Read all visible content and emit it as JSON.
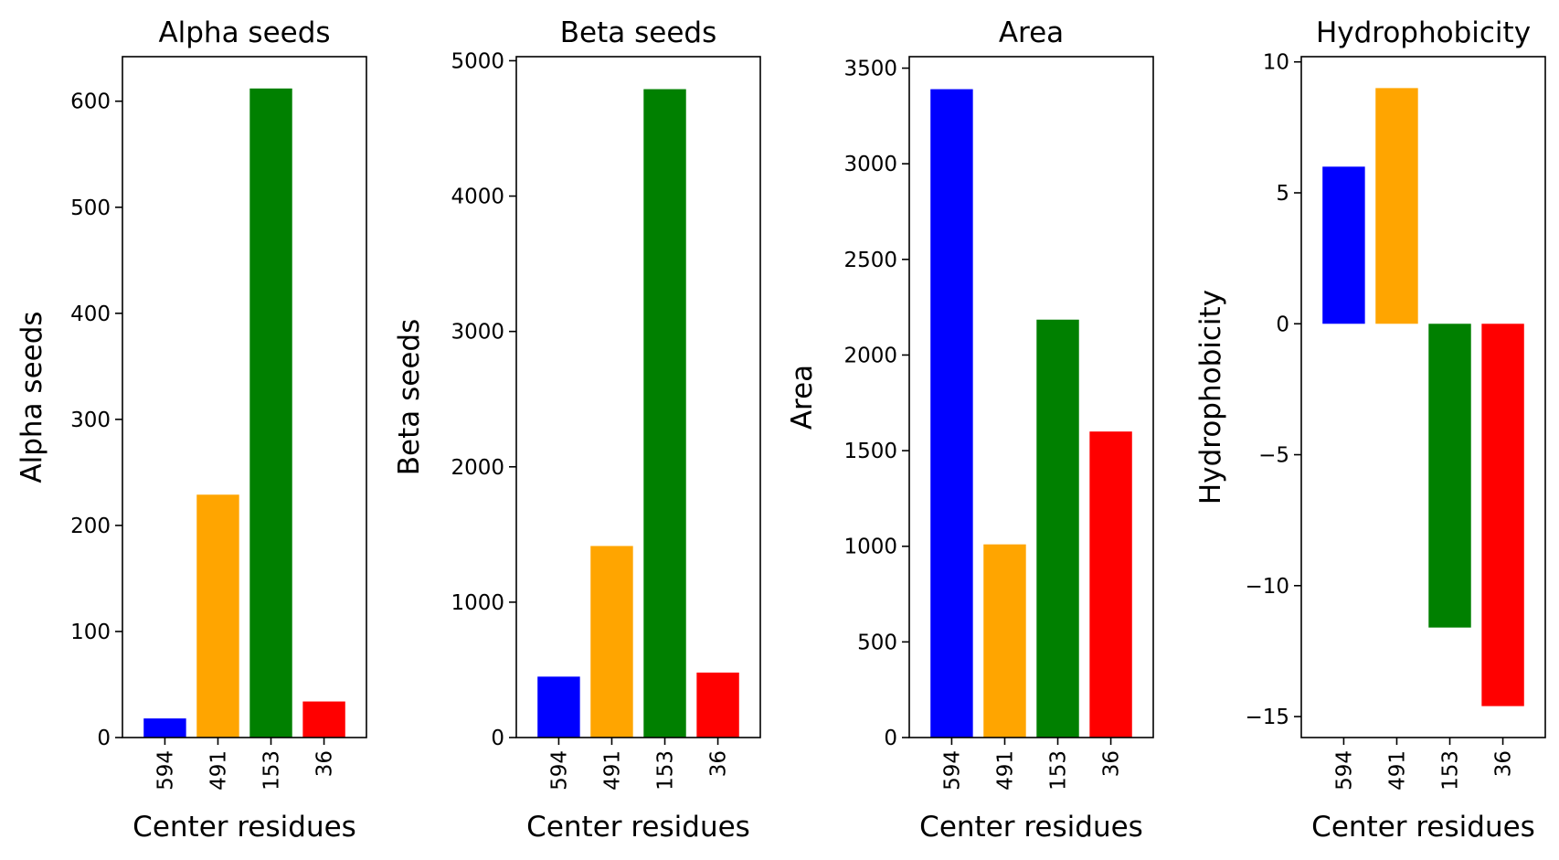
{
  "chart_data": [
    {
      "type": "bar",
      "title": "Alpha seeds",
      "xlabel": "Center residues",
      "ylabel": "Alpha seeds",
      "categories": [
        "594",
        "491",
        "153",
        "36"
      ],
      "values": [
        18,
        229,
        612,
        34
      ],
      "colors": [
        "#0000ff",
        "#ffa500",
        "#008000",
        "#ff0000"
      ],
      "ylim": [
        0,
        642
      ],
      "yticks": [
        0,
        100,
        200,
        300,
        400,
        500,
        600
      ],
      "grid": false
    },
    {
      "type": "bar",
      "title": "Beta seeds",
      "xlabel": "Center residues",
      "ylabel": "Beta seeds",
      "categories": [
        "594",
        "491",
        "153",
        "36"
      ],
      "values": [
        450,
        1415,
        4790,
        480
      ],
      "colors": [
        "#0000ff",
        "#ffa500",
        "#008000",
        "#ff0000"
      ],
      "ylim": [
        0,
        5030
      ],
      "yticks": [
        0,
        1000,
        2000,
        3000,
        4000,
        5000
      ],
      "grid": false
    },
    {
      "type": "bar",
      "title": "Area",
      "xlabel": "Center residues",
      "ylabel": "Area",
      "categories": [
        "594",
        "491",
        "153",
        "36"
      ],
      "values": [
        3390,
        1010,
        2185,
        1600
      ],
      "colors": [
        "#0000ff",
        "#ffa500",
        "#008000",
        "#ff0000"
      ],
      "ylim": [
        0,
        3560
      ],
      "yticks": [
        0,
        500,
        1000,
        1500,
        2000,
        2500,
        3000,
        3500
      ],
      "grid": false
    },
    {
      "type": "bar",
      "title": "Hydrophobicity",
      "xlabel": "Center residues",
      "ylabel": "Hydrophobicity",
      "categories": [
        "594",
        "491",
        "153",
        "36"
      ],
      "values": [
        6,
        9,
        -11.6,
        -14.6
      ],
      "colors": [
        "#0000ff",
        "#ffa500",
        "#008000",
        "#ff0000"
      ],
      "ylim": [
        -15.8,
        10.2
      ],
      "yticks": [
        -15,
        -10,
        -5,
        0,
        5,
        10
      ],
      "yticklabels": [
        "−15",
        "−10",
        "−5",
        "0",
        "5",
        "10"
      ],
      "grid": false
    }
  ]
}
